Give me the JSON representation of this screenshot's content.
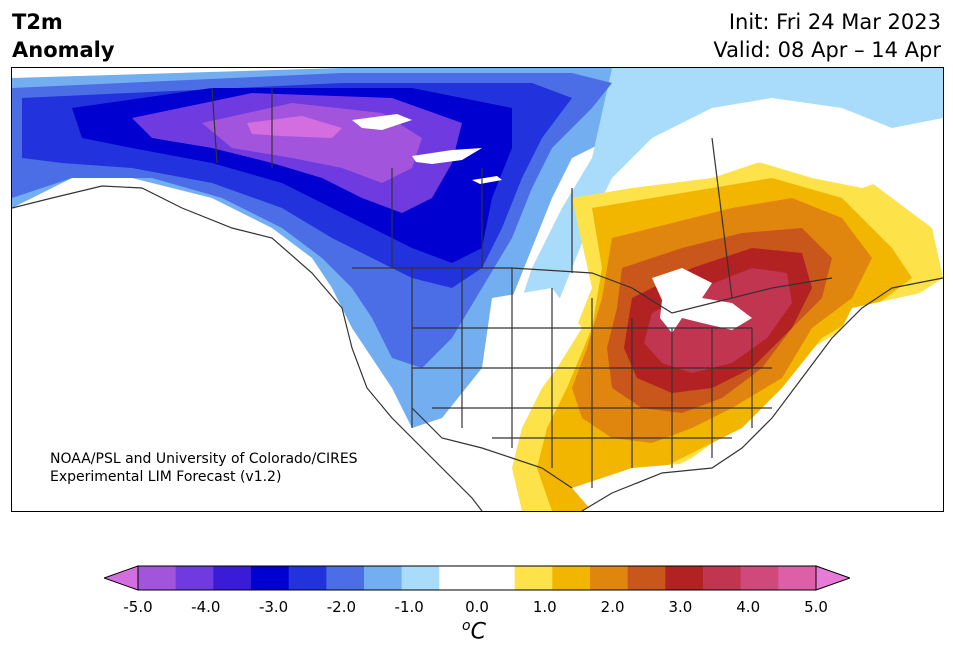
{
  "title": {
    "variable": "T2m",
    "subtitle": "Anomaly",
    "init": "Init: Fri 24 Mar 2023",
    "valid": "Valid: 08 Apr – 14 Apr"
  },
  "credit": {
    "line1": "NOAA/PSL and University of Colorado/CIRES",
    "line2": "Experimental LIM Forecast (v1.2)"
  },
  "colorbar": {
    "unit_label": "C",
    "unit_superscript": "o",
    "ticks": [
      "-5.0",
      "-4.0",
      "-3.0",
      "-2.0",
      "-1.0",
      "0.0",
      "1.0",
      "2.0",
      "3.0",
      "4.0",
      "5.0"
    ],
    "under_color": "#d46ee0",
    "over_color": "#e87ad8",
    "colors": [
      "#a255dc",
      "#6f3adf",
      "#3a1cd8",
      "#0000d0",
      "#2233dd",
      "#4b6ee6",
      "#73aef0",
      "#a9dcfb",
      "#ffffff",
      "#ffffff",
      "#fde24a",
      "#f2b500",
      "#e0860e",
      "#c9561a",
      "#b22222",
      "#c23550",
      "#cf4a7a",
      "#dc5fa8"
    ]
  },
  "map": {
    "region": "North America",
    "colors": {
      "deep_purple": "#a255dc",
      "magenta": "#d46ee0",
      "violet": "#6f3adf",
      "navy": "#0000d0",
      "blue": "#2233dd",
      "mid_blue": "#4b6ee6",
      "light_blue": "#73aef0",
      "pale_blue": "#a9dcfb",
      "yellow": "#fde24a",
      "gold": "#f2b500",
      "orange": "#e0860e",
      "dark_orange": "#c9561a",
      "red": "#b22222",
      "crimson": "#c23550",
      "border": "#333333"
    }
  }
}
